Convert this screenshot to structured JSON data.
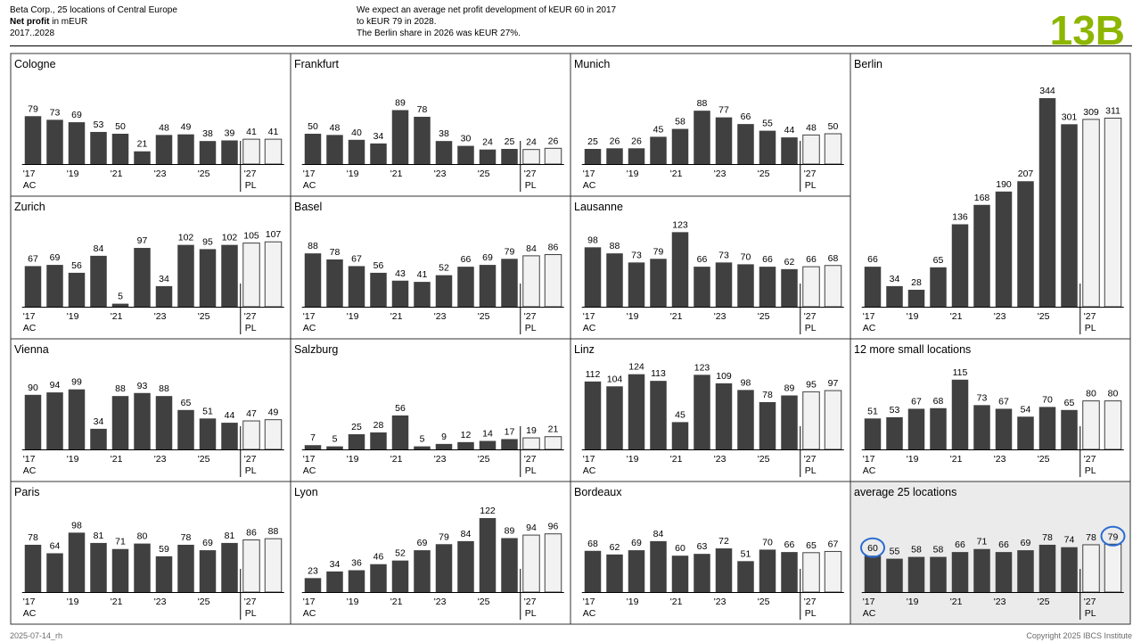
{
  "header": {
    "line1": "Beta Corp., 25 locations of Central Europe",
    "line2_bold": "Net profit",
    "line2_rest": " in mEUR",
    "line3": "2017..2028",
    "message": [
      "We expect an average net profit development of kEUR 60 in 2017",
      "to kEUR 79 in 2028.",
      "The Berlin share in 2026 was kEUR 27%."
    ],
    "page_id": "13B"
  },
  "footer": {
    "left": "2025-07-14_rh",
    "right": "Copyright 2025 IBCS Institute"
  },
  "colors": {
    "actual": "#404040",
    "plan_fill": "#f2f2f2",
    "plan_stroke": "#404040",
    "highlight_bg": "#ebebeb",
    "circle": "#2a6bd1",
    "accent": "#8db600"
  },
  "chart_data": {
    "type": "bar",
    "x_labels": [
      "'17",
      "",
      "'19",
      "",
      "'21",
      "",
      "'23",
      "",
      "'25",
      "",
      "'27",
      ""
    ],
    "scenario_labels": [
      "AC",
      "PL"
    ],
    "x": [
      2017,
      2018,
      2019,
      2020,
      2021,
      2022,
      2023,
      2024,
      2025,
      2026,
      2027,
      2028
    ],
    "plan_from_index": 10,
    "panels": [
      {
        "name": "Cologne",
        "values": [
          79,
          73,
          69,
          53,
          50,
          21,
          48,
          49,
          38,
          39,
          41,
          41
        ]
      },
      {
        "name": "Frankfurt",
        "values": [
          50,
          48,
          40,
          34,
          89,
          78,
          38,
          30,
          24,
          25,
          24,
          26
        ]
      },
      {
        "name": "Munich",
        "values": [
          25,
          26,
          26,
          45,
          58,
          88,
          77,
          66,
          55,
          44,
          48,
          50
        ]
      },
      {
        "name": "Berlin",
        "values": [
          66,
          34,
          28,
          65,
          136,
          168,
          190,
          207,
          344,
          301,
          309,
          311
        ]
      },
      {
        "name": "Zurich",
        "values": [
          67,
          69,
          56,
          84,
          5,
          97,
          34,
          102,
          95,
          102,
          105,
          107
        ]
      },
      {
        "name": "Basel",
        "values": [
          88,
          78,
          67,
          56,
          43,
          41,
          52,
          66,
          69,
          79,
          84,
          86
        ]
      },
      {
        "name": "Lausanne",
        "values": [
          98,
          88,
          73,
          79,
          123,
          66,
          73,
          70,
          66,
          62,
          66,
          68
        ]
      },
      {
        "name": "Vienna",
        "values": [
          90,
          94,
          99,
          34,
          88,
          93,
          88,
          65,
          51,
          44,
          47,
          49
        ]
      },
      {
        "name": "Salzburg",
        "values": [
          7,
          5,
          25,
          28,
          56,
          5,
          9,
          12,
          14,
          17,
          19,
          21
        ]
      },
      {
        "name": "Linz",
        "values": [
          112,
          104,
          124,
          113,
          45,
          123,
          109,
          98,
          78,
          89,
          95,
          97
        ]
      },
      {
        "name": "12 more small locations",
        "values": [
          51,
          53,
          67,
          68,
          115,
          73,
          67,
          54,
          70,
          65,
          80,
          80
        ]
      },
      {
        "name": "Paris",
        "values": [
          78,
          64,
          98,
          81,
          71,
          80,
          59,
          78,
          69,
          81,
          86,
          88
        ]
      },
      {
        "name": "Lyon",
        "values": [
          23,
          34,
          36,
          46,
          52,
          69,
          79,
          84,
          122,
          89,
          94,
          96
        ]
      },
      {
        "name": "Bordeaux",
        "values": [
          68,
          62,
          69,
          84,
          60,
          63,
          72,
          51,
          70,
          66,
          65,
          67
        ]
      },
      {
        "name": "average 25 locations",
        "values": [
          60,
          55,
          58,
          58,
          66,
          71,
          66,
          69,
          78,
          74,
          78,
          79
        ],
        "highlight": true,
        "circled_indices": [
          0,
          11
        ]
      }
    ]
  }
}
